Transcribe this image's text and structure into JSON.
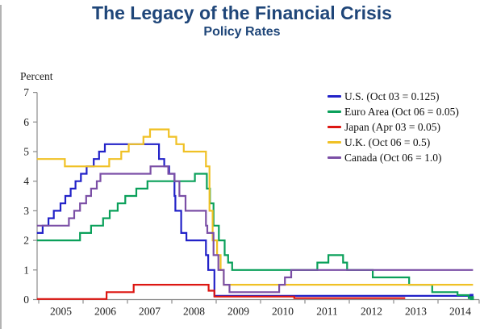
{
  "title": "The Legacy of the Financial Crisis",
  "subtitle": "Policy Rates",
  "colors": {
    "title_text": "#1f4679",
    "axis": "#8c8c8c",
    "tick_label_text": "#1c1c1c",
    "us_blue": "#2222c8",
    "euro_green": "#0aa05a",
    "japan_red": "#dd1712",
    "uk_gold": "#f0c125",
    "canada_purple": "#7b4fa6"
  },
  "chart_data": {
    "type": "line",
    "step_interpolation": true,
    "title": "The Legacy of the Financial Crisis",
    "subtitle": "Policy Rates",
    "ylabel": "Percent",
    "xlabel": "",
    "ylim": [
      0,
      7
    ],
    "xlim": [
      2004.96,
      2014.95
    ],
    "grid": false,
    "legend_position": "upper right",
    "y_ticks": [
      0,
      1,
      2,
      3,
      4,
      5,
      6,
      7
    ],
    "x_tick_years": [
      2005,
      2006,
      2007,
      2008,
      2009,
      2010,
      2011,
      2012,
      2013,
      2014
    ],
    "series": [
      {
        "id": "us",
        "name": "U.S.",
        "legend_label": "U.S. (Oct 03 = 0.125)",
        "color": "#2222c8",
        "end": 2014.755,
        "end_marker": true,
        "points": [
          [
            2004.96,
            2.25
          ],
          [
            2005.09,
            2.5
          ],
          [
            2005.22,
            2.75
          ],
          [
            2005.34,
            3.0
          ],
          [
            2005.49,
            3.25
          ],
          [
            2005.6,
            3.5
          ],
          [
            2005.72,
            3.75
          ],
          [
            2005.83,
            4.0
          ],
          [
            2005.95,
            4.25
          ],
          [
            2006.08,
            4.5
          ],
          [
            2006.24,
            4.75
          ],
          [
            2006.36,
            5.0
          ],
          [
            2006.49,
            5.25
          ],
          [
            2007.71,
            4.75
          ],
          [
            2007.83,
            4.5
          ],
          [
            2007.94,
            4.25
          ],
          [
            2008.06,
            3.5
          ],
          [
            2008.08,
            3.0
          ],
          [
            2008.21,
            2.25
          ],
          [
            2008.33,
            2.0
          ],
          [
            2008.77,
            1.5
          ],
          [
            2008.82,
            1.0
          ],
          [
            2008.96,
            0.125
          ]
        ]
      },
      {
        "id": "euro-area",
        "name": "Euro Area",
        "legend_label": "Euro Area (Oct 06 = 0.05)",
        "color": "#0aa05a",
        "end": 2014.765,
        "end_marker": true,
        "points": [
          [
            2004.96,
            2.0
          ],
          [
            2005.93,
            2.25
          ],
          [
            2006.18,
            2.5
          ],
          [
            2006.45,
            2.75
          ],
          [
            2006.6,
            3.0
          ],
          [
            2006.78,
            3.25
          ],
          [
            2006.95,
            3.5
          ],
          [
            2007.2,
            3.75
          ],
          [
            2007.45,
            4.0
          ],
          [
            2008.52,
            4.25
          ],
          [
            2008.79,
            3.75
          ],
          [
            2008.86,
            3.25
          ],
          [
            2008.94,
            2.5
          ],
          [
            2009.06,
            2.0
          ],
          [
            2009.19,
            1.5
          ],
          [
            2009.27,
            1.25
          ],
          [
            2009.36,
            1.0
          ],
          [
            2011.28,
            1.25
          ],
          [
            2011.53,
            1.5
          ],
          [
            2011.86,
            1.25
          ],
          [
            2011.95,
            1.0
          ],
          [
            2012.53,
            0.75
          ],
          [
            2013.35,
            0.5
          ],
          [
            2013.87,
            0.25
          ],
          [
            2014.44,
            0.15
          ],
          [
            2014.69,
            0.05
          ]
        ]
      },
      {
        "id": "japan",
        "name": "Japan",
        "legend_label": "Japan (Apr 03 = 0.05)",
        "color": "#dd1712",
        "end": 2013.26,
        "end_marker": false,
        "points": [
          [
            2004.96,
            0.02
          ],
          [
            2006.53,
            0.25
          ],
          [
            2007.14,
            0.5
          ],
          [
            2008.83,
            0.3
          ],
          [
            2008.96,
            0.1
          ],
          [
            2010.76,
            0.05
          ]
        ]
      },
      {
        "id": "uk",
        "name": "U.K.",
        "legend_label": "U.K. (Oct 06 = 0.5)",
        "color": "#f0c125",
        "end": 2014.79,
        "end_marker": false,
        "points": [
          [
            2004.96,
            4.75
          ],
          [
            2005.59,
            4.5
          ],
          [
            2006.59,
            4.75
          ],
          [
            2006.86,
            5.0
          ],
          [
            2007.03,
            5.25
          ],
          [
            2007.36,
            5.5
          ],
          [
            2007.51,
            5.75
          ],
          [
            2007.93,
            5.5
          ],
          [
            2008.1,
            5.25
          ],
          [
            2008.27,
            5.0
          ],
          [
            2008.77,
            4.5
          ],
          [
            2008.85,
            3.0
          ],
          [
            2008.92,
            2.0
          ],
          [
            2009.02,
            1.5
          ],
          [
            2009.1,
            1.0
          ],
          [
            2009.17,
            0.5
          ]
        ]
      },
      {
        "id": "canada",
        "name": "Canada",
        "legend_label": "Canada (Oct 06 = 1.0)",
        "color": "#7b4fa6",
        "end": 2014.79,
        "end_marker": false,
        "points": [
          [
            2004.96,
            2.5
          ],
          [
            2005.68,
            2.75
          ],
          [
            2005.8,
            3.0
          ],
          [
            2005.93,
            3.25
          ],
          [
            2006.07,
            3.5
          ],
          [
            2006.18,
            3.75
          ],
          [
            2006.31,
            4.0
          ],
          [
            2006.39,
            4.25
          ],
          [
            2007.52,
            4.5
          ],
          [
            2007.92,
            4.25
          ],
          [
            2008.06,
            4.0
          ],
          [
            2008.17,
            3.5
          ],
          [
            2008.31,
            3.0
          ],
          [
            2008.77,
            2.5
          ],
          [
            2008.8,
            2.25
          ],
          [
            2008.94,
            1.5
          ],
          [
            2009.05,
            1.0
          ],
          [
            2009.17,
            0.5
          ],
          [
            2009.3,
            0.25
          ],
          [
            2010.42,
            0.5
          ],
          [
            2010.55,
            0.75
          ],
          [
            2010.69,
            1.0
          ]
        ]
      }
    ]
  }
}
